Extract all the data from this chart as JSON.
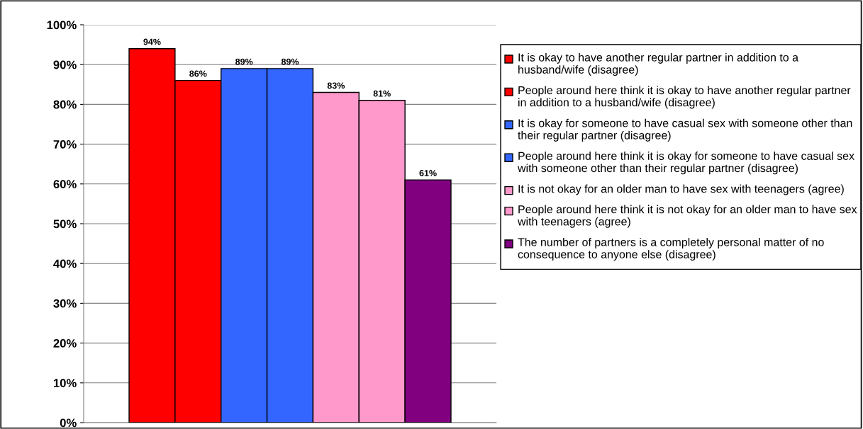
{
  "chart_data": {
    "type": "bar",
    "categories": [
      null
    ],
    "series": [
      {
        "name": "It is okay to have another regular partner in addition to a husband/wife (disagree)",
        "color": "#ff0000",
        "values": [
          94
        ],
        "value_labels": [
          "94%"
        ]
      },
      {
        "name": "People around here think it is okay to have another regular partner in addition to a husband/wife (disagree)",
        "color": "#ff0000",
        "values": [
          86
        ],
        "value_labels": [
          "86%"
        ]
      },
      {
        "name": "It is okay for someone to have casual sex with someone other than their regular partner (disagree)",
        "color": "#3366ff",
        "values": [
          89
        ],
        "value_labels": [
          "89%"
        ]
      },
      {
        "name": "People around here think it is okay for someone to have casual sex with someone other than their regular partner (disagree)",
        "color": "#3366ff",
        "values": [
          89
        ],
        "value_labels": [
          "89%"
        ]
      },
      {
        "name": "It is not okay for an older man to have sex with teenagers (agree)",
        "color": "#ff99cc",
        "values": [
          83
        ],
        "value_labels": [
          "83%"
        ]
      },
      {
        "name": "People around here think it is not okay for an older man to have sex with teenagers (agree)",
        "color": "#ff99cc",
        "values": [
          81
        ],
        "value_labels": [
          "81%"
        ]
      },
      {
        "name": "The number of partners is a completely personal matter of no consequence to anyone else (disagree)",
        "color": "#800080",
        "values": [
          61
        ],
        "value_labels": [
          "61%"
        ]
      }
    ],
    "ylim": [
      0,
      100
    ],
    "yticks": [
      {
        "value": 0,
        "label": "0%"
      },
      {
        "value": 10,
        "label": "10%"
      },
      {
        "value": 20,
        "label": "20%"
      },
      {
        "value": 30,
        "label": "30%"
      },
      {
        "value": 40,
        "label": "40%"
      },
      {
        "value": 50,
        "label": "50%"
      },
      {
        "value": 60,
        "label": "60%"
      },
      {
        "value": 70,
        "label": "70%"
      },
      {
        "value": 80,
        "label": "80%"
      },
      {
        "value": 90,
        "label": "90%"
      },
      {
        "value": 100,
        "label": "100%"
      }
    ],
    "grid": "y",
    "legend": "right"
  }
}
